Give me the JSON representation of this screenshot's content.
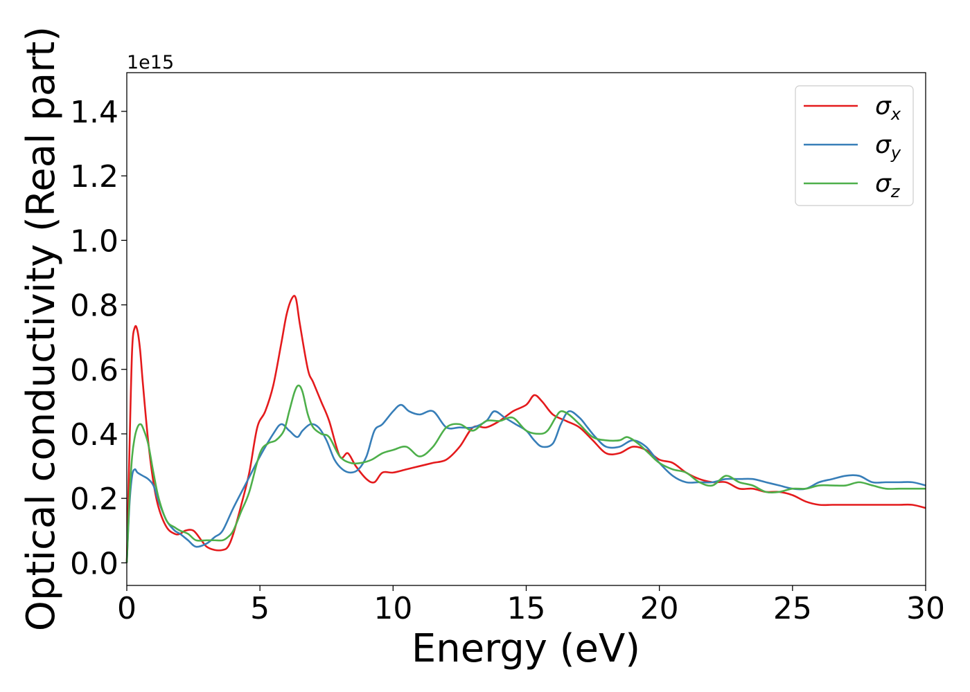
{
  "chart_data": {
    "type": "line",
    "xlabel": "Energy (eV)",
    "ylabel": "Optical conductivity (Real part)",
    "y_offset_text": "1e15",
    "xlim": [
      0,
      30
    ],
    "ylim": [
      -0.07,
      1.52
    ],
    "xticks": [
      0,
      5,
      10,
      15,
      20,
      25,
      30
    ],
    "xtick_labels": [
      "0",
      "5",
      "10",
      "15",
      "20",
      "25",
      "30"
    ],
    "yticks": [
      0.0,
      0.2,
      0.4,
      0.6,
      0.8,
      1.0,
      1.2,
      1.4
    ],
    "ytick_labels": [
      "0.0",
      "0.2",
      "0.4",
      "0.6",
      "0.8",
      "1.0",
      "1.2",
      "1.4"
    ],
    "grid": false,
    "legend_position": "top-right",
    "series": [
      {
        "name_base": "σ",
        "name_sub": "x",
        "color": "#e41a1c",
        "x": [
          0,
          0.1,
          0.2,
          0.3,
          0.4,
          0.5,
          0.6,
          0.8,
          1.0,
          1.2,
          1.5,
          1.8,
          2.0,
          2.2,
          2.5,
          2.8,
          3.0,
          3.3,
          3.6,
          3.8,
          4.0,
          4.3,
          4.6,
          4.9,
          5.2,
          5.5,
          5.8,
          6.0,
          6.2,
          6.35,
          6.5,
          6.8,
          7.0,
          7.3,
          7.6,
          8.0,
          8.3,
          8.6,
          9.0,
          9.3,
          9.6,
          10.0,
          10.5,
          11.0,
          11.5,
          12.0,
          12.5,
          13.0,
          13.5,
          14.0,
          14.5,
          15.0,
          15.3,
          15.6,
          16.0,
          16.5,
          17.0,
          17.5,
          18.0,
          18.5,
          19.0,
          19.5,
          20.0,
          20.5,
          21.0,
          21.5,
          22.0,
          22.5,
          23.0,
          23.5,
          24.0,
          24.5,
          25.0,
          25.5,
          26.0,
          26.5,
          27.0,
          27.5,
          28.0,
          28.5,
          29.0,
          29.5,
          30.0
        ],
        "y": [
          0.0,
          0.35,
          0.66,
          0.73,
          0.72,
          0.66,
          0.56,
          0.38,
          0.25,
          0.17,
          0.11,
          0.09,
          0.09,
          0.1,
          0.1,
          0.07,
          0.05,
          0.04,
          0.04,
          0.05,
          0.09,
          0.18,
          0.28,
          0.42,
          0.47,
          0.55,
          0.68,
          0.77,
          0.82,
          0.82,
          0.74,
          0.6,
          0.56,
          0.5,
          0.44,
          0.33,
          0.34,
          0.3,
          0.26,
          0.25,
          0.28,
          0.28,
          0.29,
          0.3,
          0.31,
          0.32,
          0.36,
          0.42,
          0.42,
          0.44,
          0.47,
          0.49,
          0.52,
          0.5,
          0.46,
          0.44,
          0.42,
          0.38,
          0.34,
          0.34,
          0.36,
          0.35,
          0.32,
          0.31,
          0.28,
          0.26,
          0.25,
          0.25,
          0.23,
          0.23,
          0.22,
          0.22,
          0.21,
          0.19,
          0.18,
          0.18,
          0.18,
          0.18,
          0.18,
          0.18,
          0.18,
          0.18,
          0.17
        ]
      },
      {
        "name_base": "σ",
        "name_sub": "y",
        "color": "#377eb8",
        "x": [
          0,
          0.1,
          0.2,
          0.3,
          0.4,
          0.6,
          0.8,
          1.0,
          1.2,
          1.5,
          1.8,
          2.0,
          2.3,
          2.6,
          3.0,
          3.3,
          3.6,
          4.0,
          4.5,
          5.0,
          5.5,
          5.8,
          6.1,
          6.4,
          6.6,
          6.9,
          7.2,
          7.5,
          7.8,
          8.1,
          8.4,
          8.7,
          9.0,
          9.3,
          9.6,
          10.0,
          10.3,
          10.6,
          11.0,
          11.5,
          12.0,
          12.5,
          13.0,
          13.5,
          13.8,
          14.2,
          14.6,
          15.0,
          15.3,
          15.6,
          16.0,
          16.3,
          16.6,
          17.0,
          17.3,
          17.6,
          18.0,
          18.5,
          19.0,
          19.5,
          20.0,
          20.5,
          21.0,
          21.5,
          22.0,
          22.5,
          23.0,
          23.5,
          24.0,
          24.5,
          25.0,
          25.5,
          26.0,
          26.5,
          27.0,
          27.5,
          28.0,
          28.5,
          29.0,
          29.5,
          30.0
        ],
        "y": [
          0.0,
          0.18,
          0.27,
          0.29,
          0.28,
          0.27,
          0.26,
          0.24,
          0.19,
          0.13,
          0.1,
          0.09,
          0.07,
          0.05,
          0.06,
          0.08,
          0.1,
          0.17,
          0.25,
          0.33,
          0.4,
          0.43,
          0.41,
          0.39,
          0.41,
          0.43,
          0.42,
          0.38,
          0.32,
          0.29,
          0.28,
          0.29,
          0.33,
          0.41,
          0.43,
          0.47,
          0.49,
          0.47,
          0.46,
          0.47,
          0.42,
          0.42,
          0.42,
          0.44,
          0.47,
          0.45,
          0.43,
          0.41,
          0.38,
          0.36,
          0.37,
          0.43,
          0.47,
          0.45,
          0.42,
          0.39,
          0.36,
          0.36,
          0.38,
          0.36,
          0.31,
          0.27,
          0.25,
          0.25,
          0.25,
          0.26,
          0.26,
          0.26,
          0.25,
          0.24,
          0.23,
          0.23,
          0.25,
          0.26,
          0.27,
          0.27,
          0.25,
          0.25,
          0.25,
          0.25,
          0.24
        ]
      },
      {
        "name_base": "σ",
        "name_sub": "z",
        "color": "#4daf4a",
        "x": [
          0,
          0.1,
          0.2,
          0.3,
          0.4,
          0.5,
          0.6,
          0.8,
          1.0,
          1.2,
          1.5,
          1.8,
          2.0,
          2.3,
          2.6,
          3.0,
          3.3,
          3.6,
          3.8,
          4.0,
          4.3,
          4.6,
          5.0,
          5.3,
          5.6,
          5.9,
          6.1,
          6.3,
          6.45,
          6.6,
          6.8,
          7.0,
          7.3,
          7.6,
          8.0,
          8.4,
          8.8,
          9.2,
          9.6,
          10.0,
          10.5,
          11.0,
          11.5,
          12.0,
          12.5,
          13.0,
          13.5,
          14.0,
          14.5,
          15.0,
          15.5,
          15.8,
          16.1,
          16.3,
          16.6,
          17.0,
          17.5,
          18.0,
          18.5,
          18.8,
          19.2,
          19.6,
          20.0,
          20.5,
          21.0,
          21.5,
          22.0,
          22.5,
          23.0,
          23.5,
          24.0,
          24.5,
          25.0,
          25.5,
          26.0,
          26.5,
          27.0,
          27.5,
          28.0,
          28.5,
          29.0,
          29.5,
          30.0
        ],
        "y": [
          0.0,
          0.2,
          0.33,
          0.39,
          0.42,
          0.43,
          0.42,
          0.37,
          0.28,
          0.2,
          0.13,
          0.11,
          0.1,
          0.09,
          0.07,
          0.07,
          0.07,
          0.07,
          0.08,
          0.1,
          0.16,
          0.22,
          0.34,
          0.37,
          0.38,
          0.41,
          0.47,
          0.53,
          0.55,
          0.53,
          0.46,
          0.42,
          0.4,
          0.39,
          0.33,
          0.31,
          0.31,
          0.32,
          0.34,
          0.35,
          0.36,
          0.33,
          0.36,
          0.42,
          0.43,
          0.41,
          0.44,
          0.44,
          0.45,
          0.41,
          0.4,
          0.41,
          0.45,
          0.47,
          0.46,
          0.43,
          0.39,
          0.38,
          0.38,
          0.39,
          0.37,
          0.34,
          0.31,
          0.29,
          0.28,
          0.25,
          0.24,
          0.27,
          0.25,
          0.24,
          0.22,
          0.22,
          0.23,
          0.23,
          0.24,
          0.24,
          0.24,
          0.25,
          0.24,
          0.23,
          0.23,
          0.23,
          0.23
        ]
      }
    ]
  }
}
